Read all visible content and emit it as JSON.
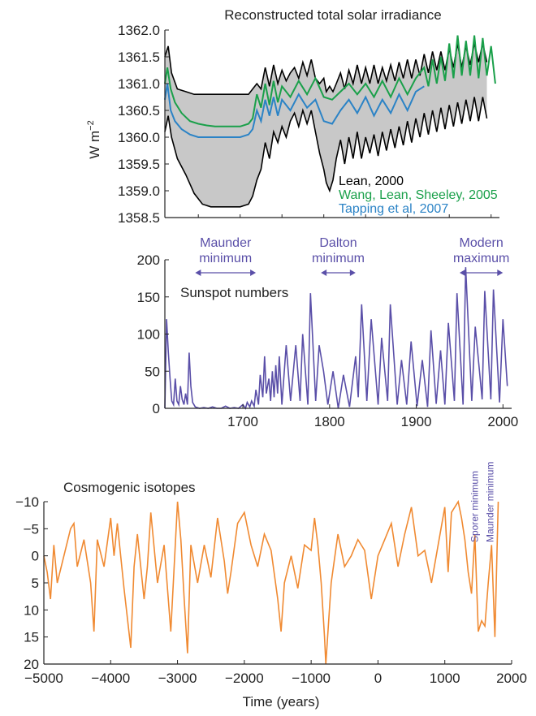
{
  "chart_data": [
    {
      "type": "area",
      "title": "Reconstructed total solar irradiance",
      "xlabel": "",
      "ylabel": "W m",
      "ylabel_sup": "−2",
      "xlim": [
        1610,
        2010
      ],
      "ylim": [
        1358.5,
        1362.0
      ],
      "y_ticks": [
        "1358.5",
        "1359.0",
        "1359.5",
        "1360.0",
        "1360.5",
        "1361.0",
        "1361.5",
        "1362.0"
      ],
      "band": {
        "name": "Lean, 2000",
        "color": "#000000",
        "fill": "#c8c8c8",
        "x": [
          1610,
          1614,
          1618,
          1625,
          1635,
          1645,
          1655,
          1665,
          1675,
          1690,
          1700,
          1710,
          1715,
          1720,
          1725,
          1730,
          1735,
          1740,
          1745,
          1750,
          1755,
          1760,
          1765,
          1770,
          1775,
          1780,
          1785,
          1790,
          1795,
          1800,
          1803,
          1807,
          1811,
          1815,
          1820,
          1825,
          1830,
          1835,
          1840,
          1845,
          1850,
          1855,
          1860,
          1865,
          1870,
          1875,
          1880,
          1885,
          1890,
          1895,
          1900,
          1905,
          1910,
          1915,
          1920,
          1925,
          1930,
          1935,
          1940,
          1945,
          1950,
          1955,
          1960,
          1965,
          1970,
          1975,
          1980,
          1985,
          1990,
          1995
        ],
        "upper": [
          1361.5,
          1361.7,
          1361.2,
          1360.9,
          1360.85,
          1360.8,
          1360.8,
          1360.8,
          1360.8,
          1360.8,
          1360.8,
          1360.8,
          1360.9,
          1361.0,
          1360.9,
          1361.3,
          1360.95,
          1361.35,
          1361.0,
          1361.25,
          1361.05,
          1361.2,
          1361.3,
          1361.1,
          1361.4,
          1361.15,
          1361.45,
          1361.1,
          1361.0,
          1361.1,
          1360.85,
          1360.95,
          1360.85,
          1361.0,
          1361.2,
          1360.9,
          1361.25,
          1361.0,
          1361.35,
          1361.0,
          1361.3,
          1361.0,
          1361.35,
          1361.0,
          1361.3,
          1361.05,
          1361.35,
          1361.05,
          1361.4,
          1361.1,
          1361.45,
          1361.1,
          1361.45,
          1361.15,
          1361.55,
          1361.2,
          1361.6,
          1361.25,
          1361.6,
          1361.25,
          1361.65,
          1361.3,
          1361.75,
          1361.3,
          1361.7,
          1361.35,
          1361.75,
          1361.4,
          1361.75,
          1361.4
        ],
        "lower": [
          1360.1,
          1360.4,
          1360.0,
          1359.6,
          1359.3,
          1358.95,
          1358.75,
          1358.7,
          1358.7,
          1358.7,
          1358.7,
          1358.75,
          1358.9,
          1359.2,
          1359.4,
          1359.9,
          1359.6,
          1360.1,
          1359.9,
          1360.2,
          1360.0,
          1360.3,
          1360.45,
          1360.2,
          1360.5,
          1360.25,
          1360.5,
          1360.1,
          1359.7,
          1359.4,
          1359.15,
          1359.0,
          1359.2,
          1359.6,
          1359.95,
          1359.5,
          1360.0,
          1359.6,
          1360.1,
          1359.6,
          1360.0,
          1359.7,
          1360.05,
          1359.65,
          1360.1,
          1359.75,
          1360.15,
          1359.8,
          1360.2,
          1359.85,
          1360.3,
          1359.9,
          1360.35,
          1360.0,
          1360.45,
          1360.05,
          1360.5,
          1360.1,
          1360.55,
          1360.15,
          1360.6,
          1360.2,
          1360.65,
          1360.25,
          1360.7,
          1360.3,
          1360.75,
          1360.3,
          1360.75,
          1360.35
        ]
      },
      "series": [
        {
          "name": "Wang, Lean, Sheeley, 2005",
          "color": "#1aa04a",
          "x": [
            1610,
            1613,
            1617,
            1622,
            1630,
            1640,
            1650,
            1660,
            1670,
            1680,
            1690,
            1700,
            1710,
            1715,
            1720,
            1725,
            1730,
            1735,
            1740,
            1745,
            1750,
            1760,
            1770,
            1780,
            1790,
            1800,
            1810,
            1820,
            1830,
            1840,
            1850,
            1860,
            1870,
            1880,
            1890,
            1900,
            1910,
            1920,
            1925,
            1930,
            1935,
            1940,
            1945,
            1950,
            1955,
            1960,
            1965,
            1970,
            1975,
            1980,
            1985,
            1990,
            1995,
            2000,
            2005
          ],
          "y": [
            1361.0,
            1361.3,
            1360.9,
            1360.65,
            1360.45,
            1360.3,
            1360.25,
            1360.22,
            1360.2,
            1360.2,
            1360.2,
            1360.2,
            1360.25,
            1360.35,
            1360.8,
            1360.55,
            1361.0,
            1360.6,
            1361.05,
            1360.65,
            1360.95,
            1360.75,
            1361.05,
            1360.8,
            1361.1,
            1360.75,
            1360.7,
            1360.85,
            1361.0,
            1360.8,
            1361.0,
            1360.75,
            1361.05,
            1360.75,
            1361.1,
            1360.8,
            1361.1,
            1361.3,
            1360.95,
            1361.45,
            1361.0,
            1361.5,
            1361.05,
            1361.75,
            1361.1,
            1361.9,
            1361.15,
            1361.8,
            1361.15,
            1361.9,
            1361.1,
            1361.85,
            1361.15,
            1361.7,
            1361.0
          ]
        },
        {
          "name": "Tapping et al, 2007",
          "color": "#2b83c6",
          "x": [
            1610,
            1613,
            1617,
            1622,
            1630,
            1640,
            1650,
            1660,
            1670,
            1680,
            1690,
            1700,
            1710,
            1715,
            1720,
            1725,
            1730,
            1735,
            1740,
            1745,
            1750,
            1760,
            1770,
            1780,
            1790,
            1800,
            1810,
            1820,
            1830,
            1840,
            1850,
            1860,
            1870,
            1880,
            1890,
            1900,
            1910,
            1920
          ],
          "y": [
            1360.7,
            1361.0,
            1360.5,
            1360.3,
            1360.15,
            1360.05,
            1360.0,
            1360.0,
            1360.0,
            1360.0,
            1360.0,
            1360.0,
            1360.05,
            1360.15,
            1360.5,
            1360.3,
            1360.7,
            1360.4,
            1360.75,
            1360.4,
            1360.7,
            1360.5,
            1360.8,
            1360.55,
            1360.7,
            1360.3,
            1360.25,
            1360.5,
            1360.7,
            1360.45,
            1360.75,
            1360.4,
            1360.7,
            1360.45,
            1360.8,
            1360.5,
            1360.85,
            1360.95
          ]
        }
      ]
    },
    {
      "type": "line",
      "title": "Sunspot numbers",
      "xlabel": "",
      "ylabel": "",
      "xlim": [
        1610,
        2010
      ],
      "ylim": [
        0,
        200
      ],
      "x_ticks": [
        "1700",
        "1800",
        "1900",
        "2000"
      ],
      "y_ticks": [
        "0",
        "50",
        "100",
        "150",
        "200"
      ],
      "annotations": [
        {
          "lines": [
            "Maunder",
            "minimum"
          ],
          "from": 1645,
          "to": 1715
        },
        {
          "lines": [
            "Dalton",
            "minimum"
          ],
          "from": 1790,
          "to": 1830
        },
        {
          "lines": [
            "Modern",
            "maximum"
          ],
          "from": 1950,
          "to": 2000
        }
      ],
      "series": [
        {
          "name": "",
          "color": "#5a4fa8",
          "x": [
            1610,
            1612,
            1614,
            1616,
            1618,
            1620,
            1622,
            1624,
            1626,
            1628,
            1630,
            1632,
            1634,
            1636,
            1638,
            1640,
            1642,
            1645,
            1650,
            1655,
            1660,
            1665,
            1670,
            1675,
            1680,
            1685,
            1690,
            1695,
            1700,
            1703,
            1705,
            1708,
            1710,
            1713,
            1715,
            1718,
            1720,
            1723,
            1725,
            1727,
            1730,
            1732,
            1734,
            1736,
            1738,
            1740,
            1742,
            1745,
            1750,
            1755,
            1761,
            1766,
            1769,
            1775,
            1778,
            1784,
            1788,
            1793,
            1798,
            1804,
            1810,
            1816,
            1823,
            1830,
            1833,
            1837,
            1843,
            1848,
            1856,
            1860,
            1867,
            1870,
            1878,
            1883,
            1889,
            1894,
            1901,
            1907,
            1913,
            1917,
            1923,
            1928,
            1933,
            1937,
            1944,
            1947,
            1954,
            1957,
            1964,
            1968,
            1976,
            1979,
            1986,
            1989,
            1996,
            2000,
            2005
          ],
          "y": [
            0,
            120,
            75,
            40,
            10,
            5,
            40,
            10,
            5,
            30,
            12,
            5,
            20,
            5,
            75,
            30,
            8,
            2,
            0,
            1,
            0,
            2,
            0,
            0,
            3,
            0,
            1,
            0,
            5,
            0,
            8,
            2,
            10,
            3,
            25,
            5,
            45,
            15,
            70,
            20,
            40,
            10,
            50,
            15,
            58,
            20,
            70,
            5,
            85,
            10,
            85,
            10,
            100,
            5,
            155,
            10,
            85,
            50,
            5,
            50,
            0,
            45,
            2,
            70,
            15,
            140,
            10,
            120,
            5,
            95,
            10,
            140,
            5,
            65,
            5,
            90,
            3,
            65,
            2,
            105,
            6,
            78,
            5,
            115,
            10,
            155,
            5,
            190,
            10,
            110,
            12,
            158,
            12,
            160,
            8,
            120,
            30
          ]
        }
      ]
    },
    {
      "type": "line",
      "title": "Cosmogenic isotopes",
      "xlabel": "Time (years)",
      "ylabel": "",
      "xlim": [
        -5000,
        2000
      ],
      "ylim": [
        20,
        -10
      ],
      "y_inverted": true,
      "x_ticks": [
        "−5000",
        "−4000",
        "−3000",
        "−2000",
        "−1000",
        "0",
        "1000",
        "2000"
      ],
      "y_ticks": [
        "−10",
        "−5",
        "0",
        "5",
        "10",
        "15",
        "20"
      ],
      "annotations": [
        {
          "text": "Sporer minimum",
          "x": 1450
        },
        {
          "text": "Maunder minimum",
          "x": 1680
        }
      ],
      "series": [
        {
          "name": "",
          "color": "#f08a32",
          "x": [
            -5000,
            -4950,
            -4900,
            -4850,
            -4800,
            -4700,
            -4600,
            -4550,
            -4500,
            -4400,
            -4300,
            -4250,
            -4200,
            -4100,
            -4000,
            -3950,
            -3900,
            -3800,
            -3700,
            -3650,
            -3600,
            -3500,
            -3450,
            -3400,
            -3300,
            -3200,
            -3100,
            -3000,
            -2950,
            -2900,
            -2850,
            -2800,
            -2700,
            -2600,
            -2500,
            -2400,
            -2300,
            -2250,
            -2200,
            -2100,
            -2000,
            -1900,
            -1800,
            -1700,
            -1600,
            -1500,
            -1450,
            -1400,
            -1300,
            -1200,
            -1100,
            -1000,
            -950,
            -900,
            -850,
            -800,
            -780,
            -700,
            -600,
            -500,
            -400,
            -300,
            -200,
            -100,
            0,
            100,
            200,
            300,
            400,
            500,
            600,
            700,
            800,
            900,
            1000,
            1050,
            1100,
            1200,
            1250,
            1300,
            1350,
            1400,
            1450,
            1500,
            1550,
            1600,
            1650,
            1700,
            1750,
            1800
          ],
          "y": [
            0,
            3,
            8,
            -2,
            5,
            0,
            -5,
            -6,
            2,
            -3,
            5,
            14,
            -3,
            2,
            -7,
            0,
            -6,
            6,
            17,
            2,
            -4,
            8,
            2,
            -8,
            5,
            -2,
            14,
            -10,
            -3,
            8,
            18,
            -2,
            5,
            -2,
            4,
            -7,
            1,
            7,
            3,
            -6,
            -8,
            -2,
            2,
            -4,
            -1,
            8,
            14,
            5,
            0,
            6,
            -2,
            -1,
            -7,
            -2,
            5,
            15,
            20,
            5,
            -4,
            2,
            0,
            -3,
            -1,
            8,
            0,
            -3,
            -6,
            2,
            -4,
            -9,
            0,
            -1,
            5,
            -2,
            -9,
            3,
            -8,
            -10,
            -7,
            -3,
            3,
            7,
            -4,
            14,
            12,
            13,
            5,
            -2,
            15,
            -10
          ]
        }
      ]
    }
  ]
}
